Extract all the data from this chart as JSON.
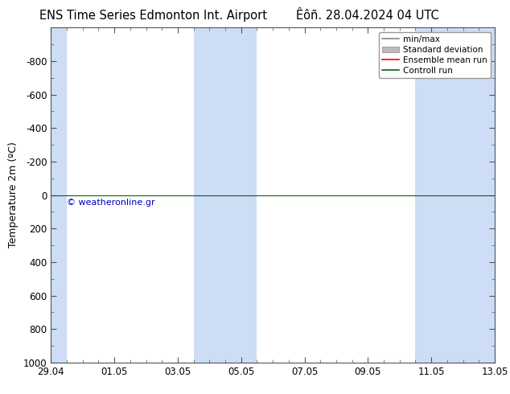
{
  "title_left": "ENS Time Series Edmonton Int. Airport",
  "title_right": "Êôñ. 28.04.2024 04 UTC",
  "ylabel": "Temperature 2m (ºC)",
  "ylim_bottom": 1000,
  "ylim_top": -1000,
  "yticks": [
    -800,
    -600,
    -400,
    -200,
    0,
    200,
    400,
    600,
    800,
    1000
  ],
  "xtick_labels": [
    "29.04",
    "01.05",
    "03.05",
    "05.05",
    "07.05",
    "09.05",
    "11.05",
    "13.05"
  ],
  "xtick_positions": [
    0,
    2,
    4,
    6,
    8,
    10,
    12,
    14
  ],
  "blue_bands": [
    [
      0,
      0.5
    ],
    [
      4.5,
      5.5
    ],
    [
      5.5,
      6.5
    ],
    [
      11.5,
      12.5
    ],
    [
      12.5,
      14
    ]
  ],
  "green_line_y": 0,
  "copyright_text": "© weatheronline.gr",
  "copyright_color": "#0000bb",
  "background_color": "#ffffff",
  "plot_bg_color": "#ffffff",
  "band_color": "#ccddf5",
  "legend_items": [
    "min/max",
    "Standard deviation",
    "Ensemble mean run",
    "Controll run"
  ],
  "legend_line_colors": [
    "#888888",
    "#bbbbbb",
    "#ff0000",
    "#006600"
  ],
  "title_fontsize": 10.5,
  "ylabel_fontsize": 9,
  "tick_fontsize": 8.5,
  "legend_fontsize": 7.5,
  "copyright_fontsize": 8
}
